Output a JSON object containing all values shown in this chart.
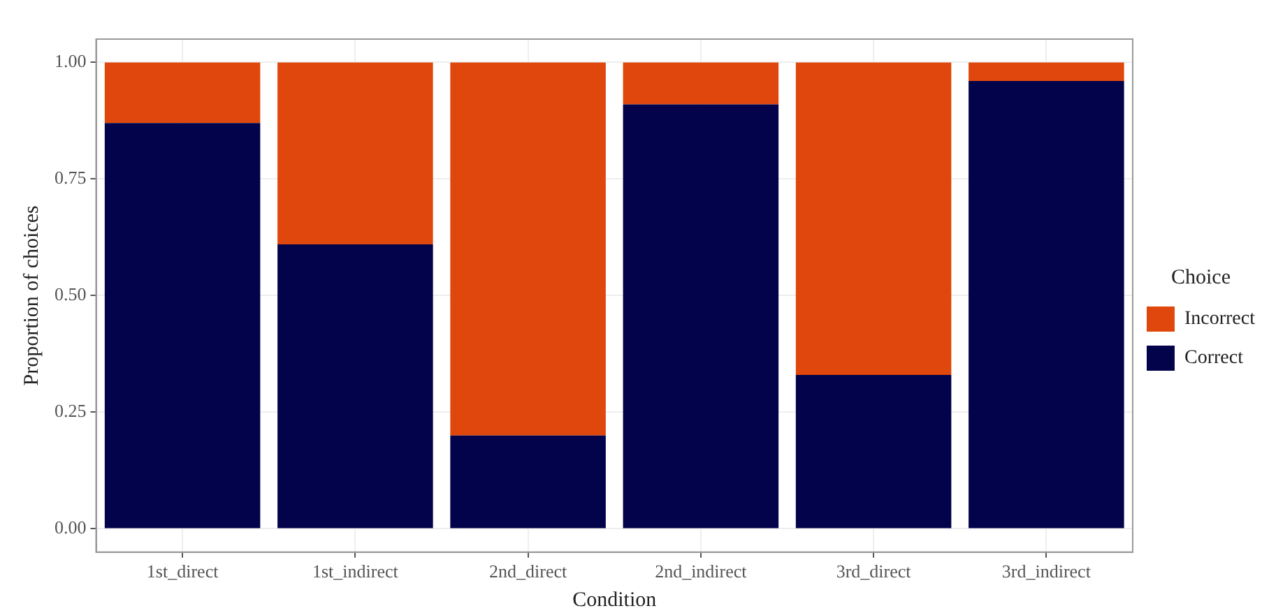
{
  "chart_data": {
    "type": "bar",
    "xlabel": "Condition",
    "ylabel": "Proportion of choices",
    "legend_title": "Choice",
    "stacked": true,
    "legend": "right",
    "grid": true,
    "categories": [
      "1st_direct",
      "1st_indirect",
      "2nd_direct",
      "2nd_indirect",
      "3rd_direct",
      "3rd_indirect"
    ],
    "series": [
      {
        "name": "Correct",
        "color": "#02034a",
        "values": [
          0.87,
          0.61,
          0.2,
          0.91,
          0.33,
          0.96
        ]
      },
      {
        "name": "Incorrect",
        "color": "#e0470c",
        "values": [
          0.13,
          0.39,
          0.8,
          0.09,
          0.67,
          0.04
        ]
      }
    ],
    "ylim": [
      -0.05,
      1.05
    ],
    "yticks": [
      {
        "value": 0,
        "label": "0.00"
      },
      {
        "value": 0.25,
        "label": "0.25"
      },
      {
        "value": 0.5,
        "label": "0.50"
      },
      {
        "value": 0.75,
        "label": "0.75"
      },
      {
        "value": 1,
        "label": "1.00"
      }
    ]
  }
}
